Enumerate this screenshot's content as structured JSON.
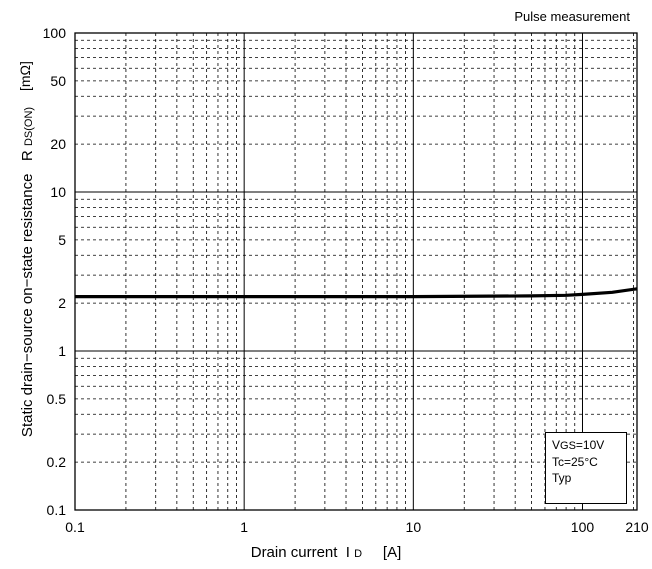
{
  "header": {
    "note": "Pulse measurement"
  },
  "labels": {
    "y_main": "Static drain−source on−state resistance",
    "y_symbol": "R",
    "y_sub": "DS(ON)",
    "y_unit": "[mΩ]",
    "x_main": "Drain current",
    "x_symbol": "I",
    "x_sub": "D",
    "x_unit": "[A]"
  },
  "conditions": {
    "vgs_v": "V",
    "vgs_sub": "GS",
    "vgs_val": "=10V",
    "tc": "Tc=25°C",
    "typ": "Typ"
  },
  "chart_data": {
    "type": "line",
    "title": "",
    "xlabel": "Drain current I D [A]",
    "ylabel": "Static drain−source on−state resistance R DS(ON) [mΩ]",
    "x_scale": "log",
    "y_scale": "log",
    "xlim": [
      0.1,
      210
    ],
    "ylim": [
      0.1,
      100
    ],
    "x_ticks": [
      0.1,
      1,
      10,
      100,
      210
    ],
    "x_tick_labels": [
      "0.1",
      "1",
      "10",
      "100",
      "210"
    ],
    "y_ticks": [
      0.1,
      0.2,
      0.5,
      1,
      2,
      5,
      10,
      20,
      50,
      100
    ],
    "y_tick_labels": [
      "0.1",
      "0.2",
      "0.5",
      "1",
      "2",
      "5",
      "10",
      "20",
      "50",
      "100"
    ],
    "grid": true,
    "series": [
      {
        "x": [
          0.1,
          1,
          10,
          50,
          80,
          100,
          150,
          210
        ],
        "y": [
          2.2,
          2.2,
          2.2,
          2.22,
          2.24,
          2.27,
          2.34,
          2.46
        ]
      }
    ]
  }
}
